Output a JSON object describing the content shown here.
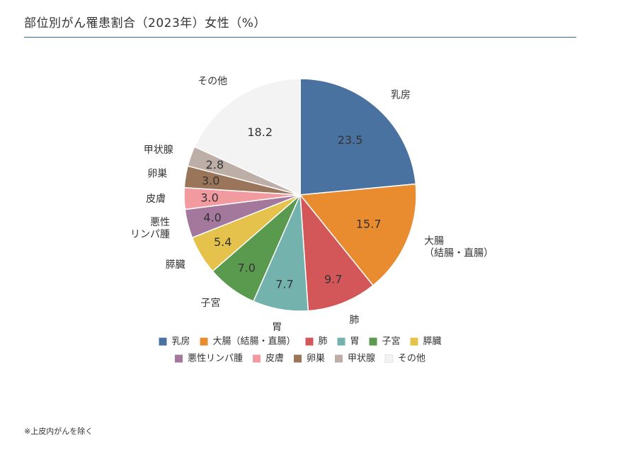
{
  "title": "部位別がん罹患割合（2023年）女性（%）",
  "footnote": "※上皮内がんを除く",
  "chart_data": {
    "type": "pie",
    "title": "部位別がん罹患割合（2023年）女性（%）",
    "unit": "%",
    "start_angle": "12 o'clock, clockwise",
    "legend_placement": "bottom",
    "slices": [
      {
        "label": "乳房",
        "legend": "乳房",
        "value": 23.5,
        "color": "#4a72a0"
      },
      {
        "label": "大腸\n（結腸・直腸）",
        "legend": "大腸（結腸・直腸）",
        "value": 15.7,
        "color": "#e88c2f"
      },
      {
        "label": "肺",
        "legend": "肺",
        "value": 9.7,
        "color": "#d35658"
      },
      {
        "label": "胃",
        "legend": "胃",
        "value": 7.7,
        "color": "#74b2ae"
      },
      {
        "label": "子宮",
        "legend": "子宮",
        "value": 7.0,
        "color": "#5a9a4e"
      },
      {
        "label": "膵臓",
        "legend": "膵臓",
        "value": 5.4,
        "color": "#e4c24b"
      },
      {
        "label": "悪性\nリンパ腫",
        "legend": "悪性リンパ腫",
        "value": 4.0,
        "color": "#a4779c"
      },
      {
        "label": "皮膚",
        "legend": "皮膚",
        "value": 3.0,
        "color": "#f19aa0"
      },
      {
        "label": "卵巣",
        "legend": "卵巣",
        "value": 3.0,
        "color": "#9a7559"
      },
      {
        "label": "甲状腺",
        "legend": "甲状腺",
        "value": 2.8,
        "color": "#bdaea8"
      },
      {
        "label": "その他",
        "legend": "その他",
        "value": 18.2,
        "color": "#f3f3f3"
      }
    ]
  }
}
